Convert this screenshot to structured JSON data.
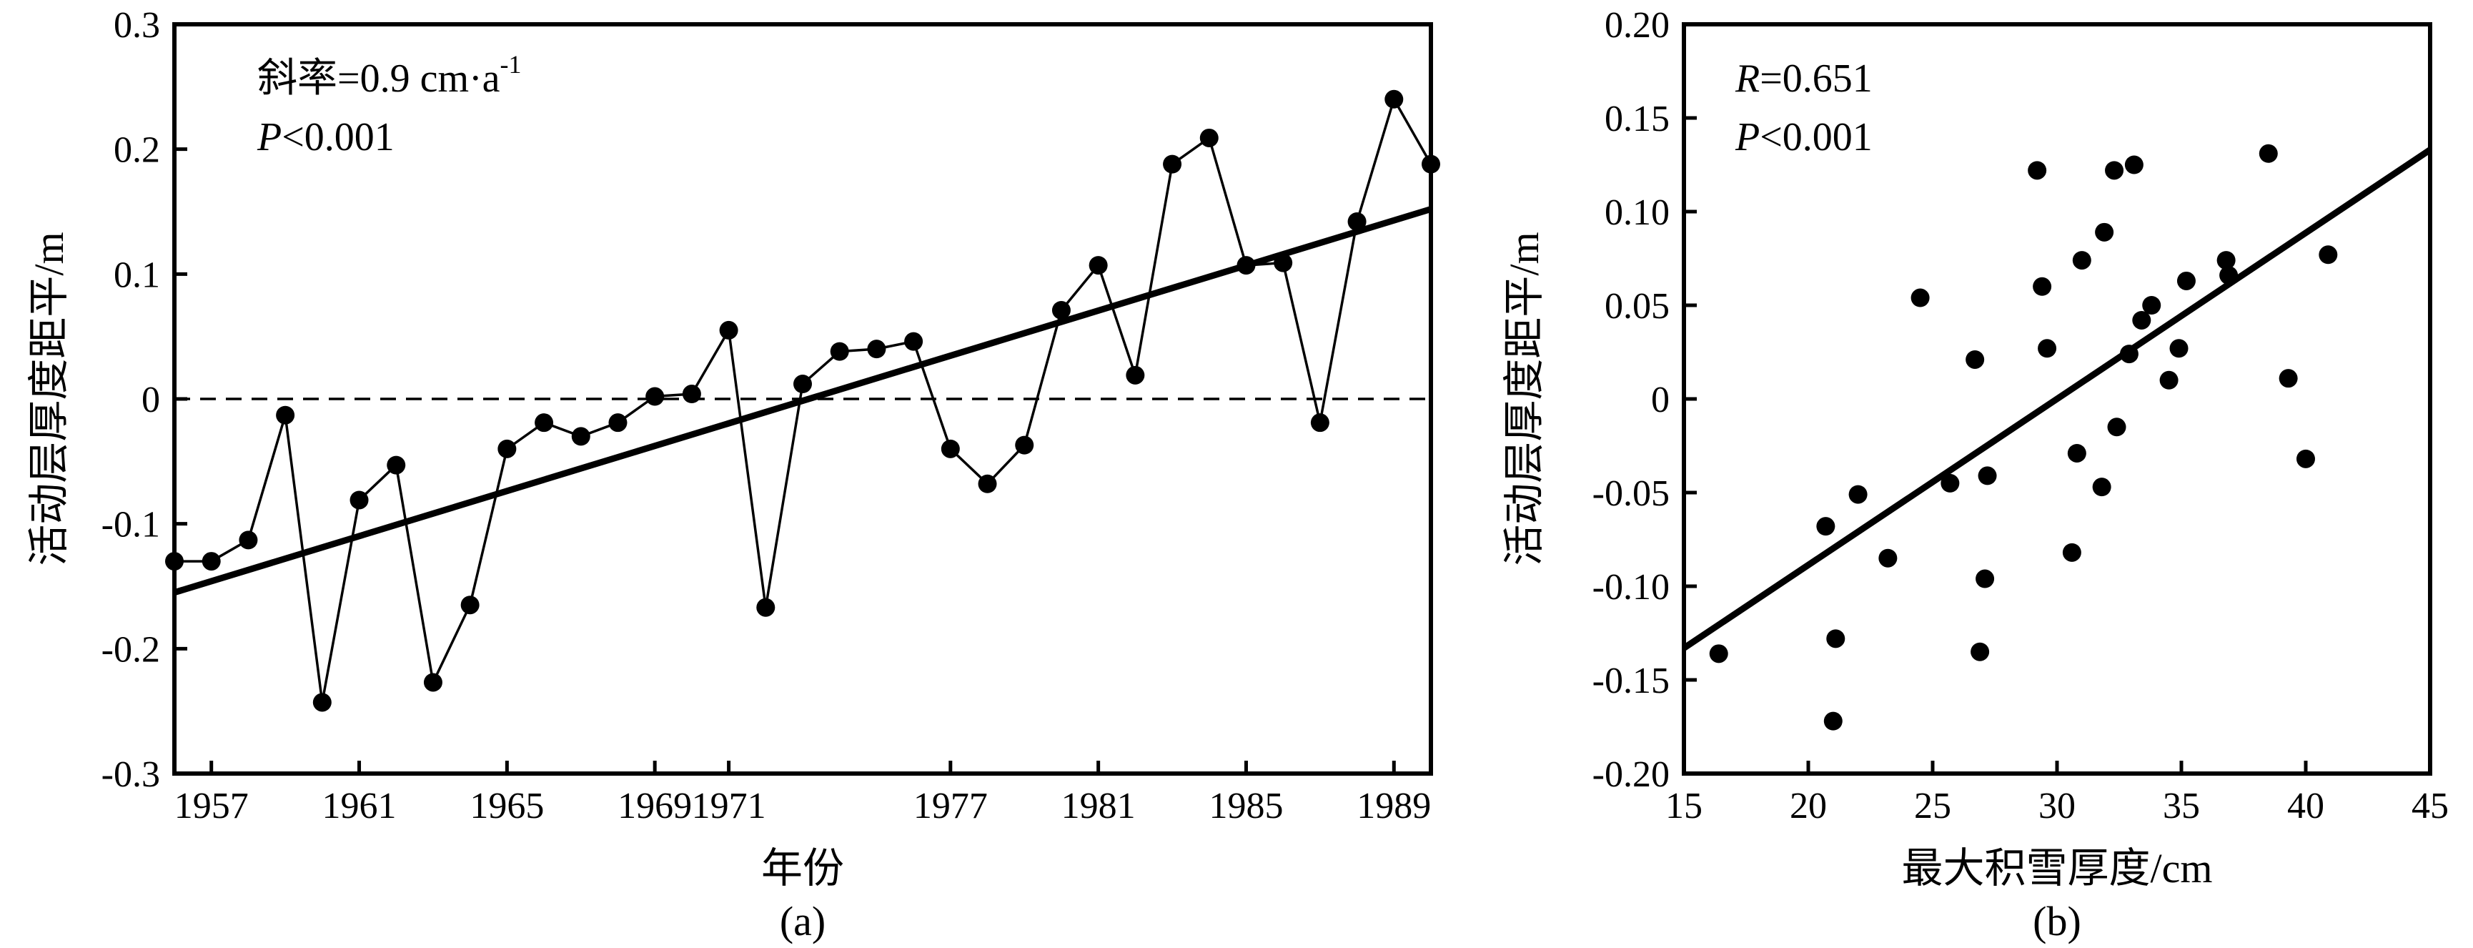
{
  "chart_data": [
    {
      "type": "line",
      "panel_label": "(a)",
      "xlabel": "年份",
      "ylabel": "活动层厚度距平/m",
      "xlim": [
        1956,
        1990
      ],
      "ylim": [
        -0.3,
        0.3
      ],
      "x_ticks": [
        1957,
        1961,
        1965,
        1969,
        1971,
        1977,
        1981,
        1985,
        1989
      ],
      "y_ticks": [
        -0.3,
        -0.2,
        -0.1,
        0,
        0.1,
        0.2,
        0.3
      ],
      "y_tick_labels": [
        "-0.3",
        "-0.2",
        "-0.1",
        "0",
        "0.1",
        "0.2",
        "0.3"
      ],
      "annotation_prefix": "斜率=0.9 cm·a",
      "annotation_sup": "-1",
      "annotation2_italic": "P",
      "annotation2_rest": "<0.001",
      "series": [
        {
          "points": [
            [
              1956,
              -0.13
            ],
            [
              1957,
              -0.13
            ],
            [
              1958,
              -0.113
            ],
            [
              1959,
              -0.013
            ],
            [
              1960,
              -0.243
            ],
            [
              1961,
              -0.081
            ],
            [
              1962,
              -0.053
            ],
            [
              1963,
              -0.227
            ],
            [
              1964,
              -0.165
            ],
            [
              1965,
              -0.04
            ],
            [
              1966,
              -0.019
            ],
            [
              1967,
              -0.03
            ],
            [
              1968,
              -0.019
            ],
            [
              1969,
              0.002
            ],
            [
              1970,
              0.004
            ],
            [
              1971,
              0.055
            ],
            [
              1972,
              -0.167
            ],
            [
              1973,
              0.012
            ],
            [
              1974,
              0.038
            ],
            [
              1975,
              0.04
            ],
            [
              1976,
              0.046
            ],
            [
              1977,
              -0.04
            ],
            [
              1978,
              -0.068
            ],
            [
              1979,
              -0.037
            ],
            [
              1980,
              0.071
            ],
            [
              1981,
              0.107
            ],
            [
              1982,
              0.019
            ],
            [
              1983,
              0.188
            ],
            [
              1984,
              0.209
            ],
            [
              1985,
              0.107
            ],
            [
              1986,
              0.109
            ],
            [
              1987,
              -0.019
            ],
            [
              1988,
              0.142
            ],
            [
              1989,
              0.24
            ],
            [
              1990,
              0.188
            ]
          ]
        }
      ],
      "trend_line": [
        [
          1956,
          -0.155
        ],
        [
          1990,
          0.152
        ]
      ],
      "reference_line_y": 0
    },
    {
      "type": "scatter",
      "panel_label": "(b)",
      "xlabel": "最大积雪厚度/cm",
      "ylabel": "活动层厚度距平/m",
      "xlim": [
        15,
        45
      ],
      "ylim": [
        -0.2,
        0.2
      ],
      "x_ticks": [
        15,
        20,
        25,
        30,
        35,
        40,
        45
      ],
      "y_ticks": [
        -0.2,
        -0.15,
        -0.1,
        -0.05,
        0,
        0.05,
        0.1,
        0.15,
        0.2
      ],
      "y_tick_labels": [
        "-0.20",
        "-0.15",
        "-0.10",
        "-0.05",
        "0",
        "0.05",
        "0.10",
        "0.15",
        "0.20"
      ],
      "annotation1_italic": "R",
      "annotation1_rest": "=0.651",
      "annotation2_italic": "P",
      "annotation2_rest": "<0.001",
      "points": [
        [
          16.4,
          -0.136
        ],
        [
          20.7,
          -0.068
        ],
        [
          21.1,
          -0.128
        ],
        [
          21.0,
          -0.172
        ],
        [
          22.0,
          -0.051
        ],
        [
          23.2,
          -0.085
        ],
        [
          24.5,
          0.054
        ],
        [
          25.7,
          -0.045
        ],
        [
          26.7,
          0.021
        ],
        [
          26.9,
          -0.135
        ],
        [
          27.1,
          -0.096
        ],
        [
          27.2,
          -0.041
        ],
        [
          29.2,
          0.122
        ],
        [
          29.4,
          0.06
        ],
        [
          29.6,
          0.027
        ],
        [
          30.6,
          -0.082
        ],
        [
          30.8,
          -0.029
        ],
        [
          31.0,
          0.074
        ],
        [
          31.8,
          -0.047
        ],
        [
          31.9,
          0.089
        ],
        [
          32.3,
          0.122
        ],
        [
          32.4,
          -0.015
        ],
        [
          32.9,
          0.024
        ],
        [
          33.1,
          0.125
        ],
        [
          33.4,
          0.042
        ],
        [
          33.8,
          0.05
        ],
        [
          34.5,
          0.01
        ],
        [
          34.9,
          0.027
        ],
        [
          35.2,
          0.063
        ],
        [
          36.8,
          0.074
        ],
        [
          36.9,
          0.066
        ],
        [
          38.5,
          0.131
        ],
        [
          39.3,
          0.011
        ],
        [
          40.0,
          -0.032
        ],
        [
          40.9,
          0.077
        ]
      ],
      "trend_line": [
        [
          15,
          -0.133
        ],
        [
          45,
          0.133
        ]
      ]
    }
  ]
}
